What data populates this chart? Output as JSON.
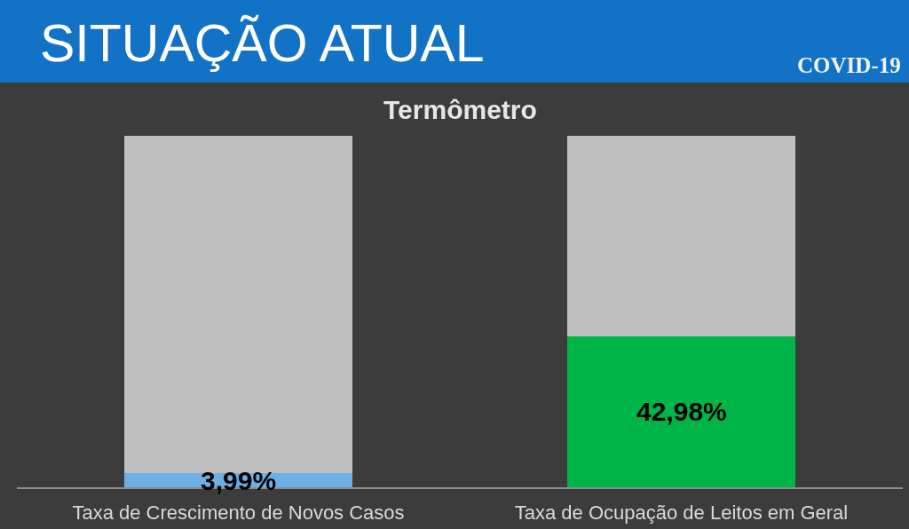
{
  "chart_data": {
    "type": "bar",
    "title": "SITUAÇÃO ATUAL",
    "subtitle": "Termômetro",
    "annotations": [
      "COVID-19"
    ],
    "categories": [
      "Taxa de Crescimento de Novos Casos",
      "Taxa de Ocupação de Leitos em Geral"
    ],
    "stacked": true,
    "series": [
      {
        "colors": [
          "#6cb0e6",
          "#00b548"
        ],
        "values": [
          3.99,
          42.98
        ],
        "value_labels": [
          "3,99%",
          "42,98%"
        ]
      },
      {
        "color": "#bfbfbf",
        "values": [
          96.01,
          57.02
        ]
      }
    ],
    "ylim": [
      0,
      100
    ],
    "tick_labels": "x",
    "grid": false
  }
}
